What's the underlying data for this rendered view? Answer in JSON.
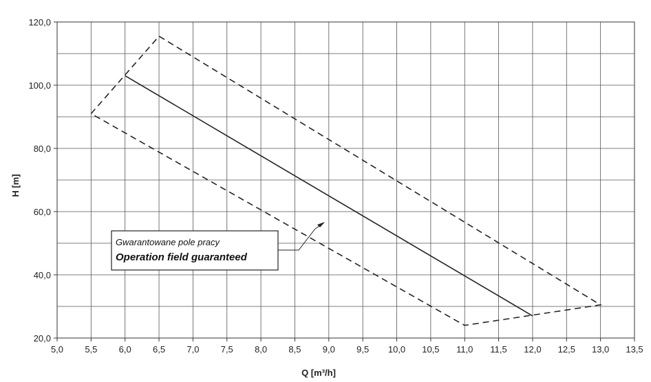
{
  "chart_data": {
    "type": "line",
    "xlabel": "Q [m³/h]",
    "ylabel": "H [m]",
    "xlim": [
      5.0,
      13.5
    ],
    "ylim": [
      20.0,
      120.0
    ],
    "x_ticks": [
      "5,0",
      "5,5",
      "6,0",
      "6,5",
      "7,0",
      "7,5",
      "8,0",
      "8,5",
      "9,0",
      "9,5",
      "10,0",
      "10,5",
      "11,0",
      "11,5",
      "12,0",
      "12,5",
      "13,0",
      "13,5"
    ],
    "y_ticks": [
      "20,0",
      "40,0",
      "60,0",
      "80,0",
      "100,0",
      "120,0"
    ],
    "grid": true,
    "series": [
      {
        "style": "solid",
        "color": "#222222",
        "x": [
          6.0,
          12.0
        ],
        "y": [
          103.0,
          27.0
        ]
      },
      {
        "style": "dashed",
        "color": "#222222",
        "x": [
          5.5,
          6.5,
          13.0,
          11.0,
          5.5
        ],
        "y": [
          91.0,
          115.5,
          30.5,
          24.0,
          91.0
        ]
      }
    ],
    "annotation": {
      "line1": "Gwarantowane pole pracy",
      "line2": "Operation field guaranteed"
    }
  }
}
